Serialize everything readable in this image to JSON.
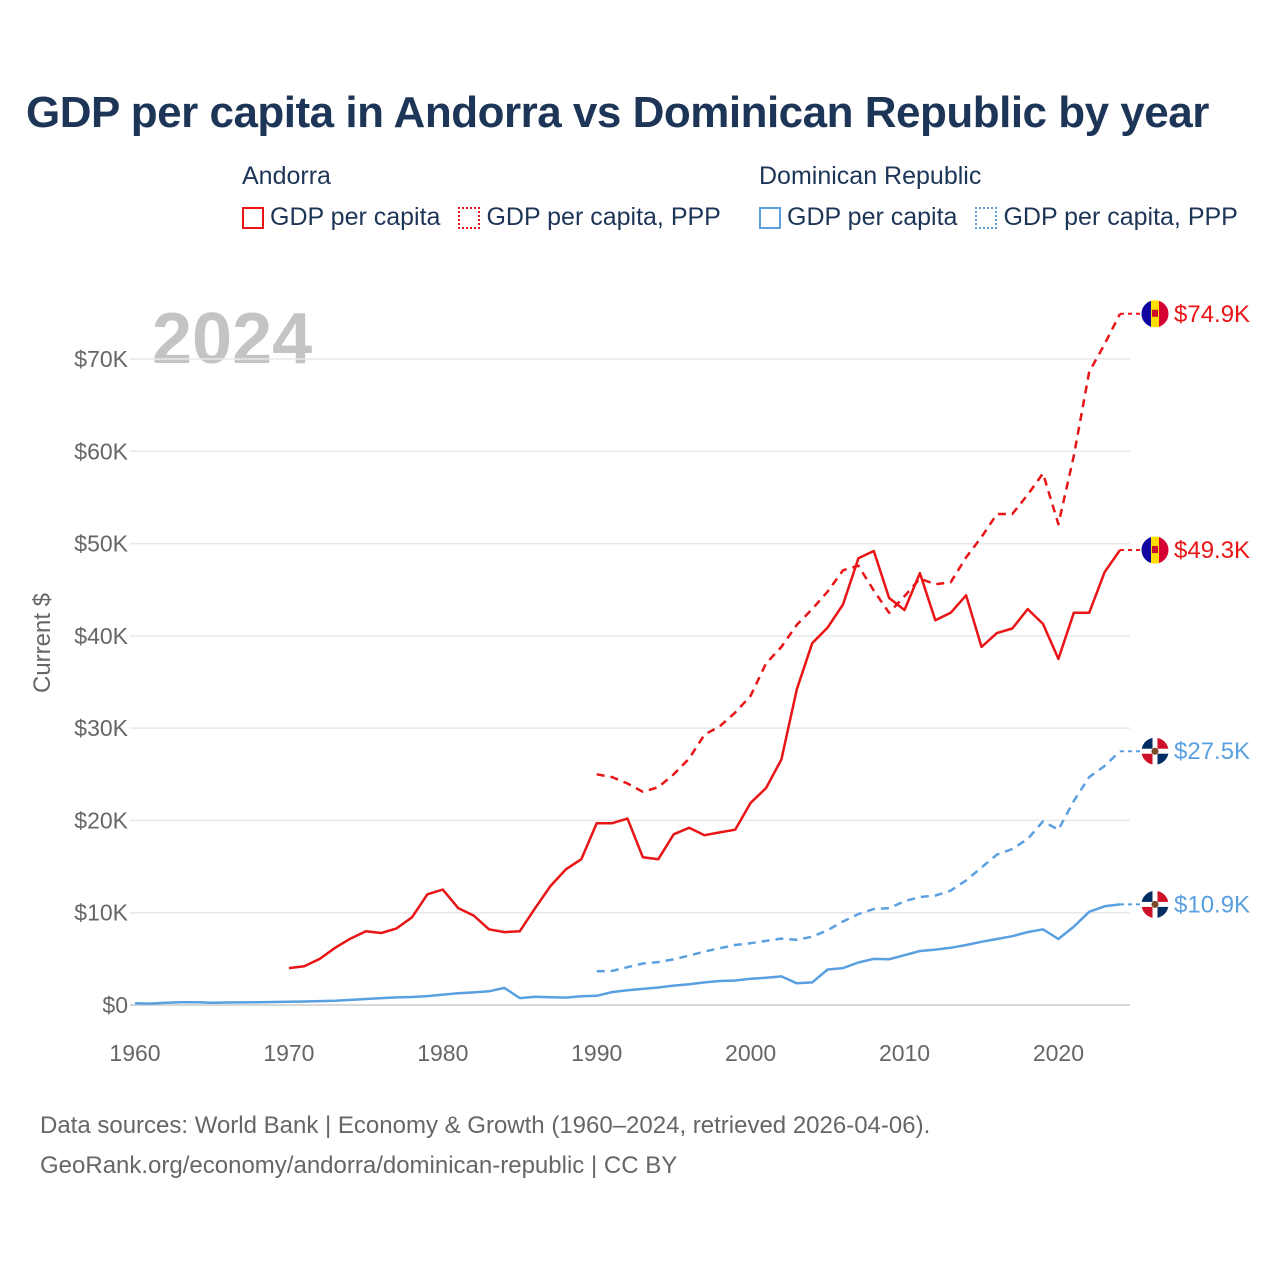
{
  "title": "GDP per capita in Andorra vs Dominican Republic by year",
  "legend": {
    "groups": [
      {
        "name": "Andorra",
        "color": "#e81416",
        "items": [
          {
            "label": "GDP per capita",
            "style": "solid"
          },
          {
            "label": "GDP per capita, PPP",
            "style": "dotted"
          }
        ]
      },
      {
        "name": "Dominican Republic",
        "color": "#5aa0e0",
        "items": [
          {
            "label": "GDP per capita",
            "style": "solid"
          },
          {
            "label": "GDP per capita, PPP",
            "style": "dotted"
          }
        ]
      }
    ]
  },
  "footer": {
    "line1": "Data sources: World Bank | Economy & Growth (1960–2024, retrieved 2026-04-06).",
    "line2": "GeoRank.org/economy/andorra/dominican-republic | CC BY"
  },
  "chart_data": {
    "type": "line",
    "title": "GDP per capita in Andorra vs Dominican Republic by year",
    "year_watermark": "2024",
    "xlabel": "",
    "ylabel": "Current $",
    "xlim": [
      1960,
      2024
    ],
    "ylim": [
      0,
      75000
    ],
    "xticks": [
      1960,
      1970,
      1980,
      1990,
      2000,
      2010,
      2020
    ],
    "yticks": [
      0,
      10000,
      20000,
      30000,
      40000,
      50000,
      60000,
      70000
    ],
    "ytick_labels": [
      "$0",
      "$10K",
      "$20K",
      "$30K",
      "$40K",
      "$50K",
      "$60K",
      "$70K"
    ],
    "grid": true,
    "series": [
      {
        "name": "Andorra GDP per capita",
        "color": "#e81416",
        "dash": "solid",
        "end_label": "$49.3K",
        "flag": "andorra",
        "x": [
          1970,
          1971,
          1972,
          1973,
          1974,
          1975,
          1976,
          1977,
          1978,
          1979,
          1980,
          1981,
          1982,
          1983,
          1984,
          1985,
          1986,
          1987,
          1988,
          1989,
          1990,
          1991,
          1992,
          1993,
          1994,
          1995,
          1996,
          1997,
          1998,
          1999,
          2000,
          2001,
          2002,
          2003,
          2004,
          2005,
          2006,
          2007,
          2008,
          2009,
          2010,
          2011,
          2012,
          2013,
          2014,
          2015,
          2016,
          2017,
          2018,
          2019,
          2020,
          2021,
          2022,
          2023,
          2024
        ],
        "values": [
          4000,
          4200,
          5000,
          6200,
          7200,
          8000,
          7800,
          8300,
          9500,
          12000,
          12500,
          10500,
          9700,
          8200,
          7900,
          8000,
          10500,
          12900,
          14700,
          15800,
          19700,
          19700,
          20200,
          16000,
          15800,
          18500,
          19200,
          18400,
          18700,
          19000,
          21900,
          23500,
          26600,
          34200,
          39200,
          40900,
          43400,
          48400,
          49200,
          44100,
          42800,
          46800,
          41700,
          42500,
          44400,
          38800,
          40300,
          40800,
          42900,
          41300,
          37500,
          42500,
          42500,
          46900,
          49300
        ]
      },
      {
        "name": "Andorra GDP per capita, PPP",
        "color": "#e81416",
        "dash": "dashed",
        "end_label": "$74.9K",
        "flag": "andorra",
        "x": [
          1990,
          1991,
          1992,
          1993,
          1994,
          1995,
          1996,
          1997,
          1998,
          1999,
          2000,
          2001,
          2002,
          2003,
          2004,
          2005,
          2006,
          2007,
          2008,
          2009,
          2010,
          2011,
          2012,
          2013,
          2014,
          2015,
          2016,
          2017,
          2018,
          2019,
          2020,
          2021,
          2022,
          2023,
          2024
        ],
        "values": [
          25000,
          24700,
          24000,
          23100,
          23600,
          25000,
          26700,
          29300,
          30200,
          31700,
          33500,
          37000,
          38800,
          41200,
          42900,
          44800,
          47100,
          47600,
          44900,
          42500,
          44300,
          46200,
          45600,
          45800,
          48500,
          50700,
          53200,
          53200,
          55300,
          57600,
          52100,
          59500,
          68600,
          71600,
          74900
        ]
      },
      {
        "name": "Dominican Republic GDP per capita",
        "color": "#5aa0e0",
        "dash": "solid",
        "end_label": "$10.9K",
        "flag": "dominican-republic",
        "x": [
          1960,
          1961,
          1962,
          1963,
          1964,
          1965,
          1966,
          1967,
          1968,
          1969,
          1970,
          1971,
          1972,
          1973,
          1974,
          1975,
          1976,
          1977,
          1978,
          1979,
          1980,
          1981,
          1982,
          1983,
          1984,
          1985,
          1986,
          1987,
          1988,
          1989,
          1990,
          1991,
          1992,
          1993,
          1994,
          1995,
          1996,
          1997,
          1998,
          1999,
          2000,
          2001,
          2002,
          2003,
          2004,
          2005,
          2006,
          2007,
          2008,
          2009,
          2010,
          2011,
          2012,
          2013,
          2014,
          2015,
          2016,
          2017,
          2018,
          2019,
          2020,
          2021,
          2022,
          2023,
          2024
        ],
        "values": [
          200,
          150,
          250,
          300,
          300,
          250,
          270,
          280,
          300,
          320,
          350,
          380,
          420,
          470,
          550,
          650,
          750,
          820,
          870,
          960,
          1130,
          1270,
          1370,
          1480,
          1850,
          750,
          900,
          850,
          800,
          950,
          1000,
          1400,
          1600,
          1750,
          1900,
          2100,
          2250,
          2450,
          2600,
          2650,
          2850,
          2950,
          3100,
          2350,
          2450,
          3850,
          4000,
          4600,
          5000,
          4950,
          5400,
          5850,
          6000,
          6200,
          6500,
          6850,
          7150,
          7450,
          7900,
          8200,
          7150,
          8500,
          10100,
          10700,
          10900
        ]
      },
      {
        "name": "Dominican Republic GDP per capita, PPP",
        "color": "#5aa0e0",
        "dash": "dashed",
        "end_label": "$27.5K",
        "flag": "dominican-republic",
        "x": [
          1990,
          1991,
          1992,
          1993,
          1994,
          1995,
          1996,
          1997,
          1998,
          1999,
          2000,
          2001,
          2002,
          2003,
          2004,
          2005,
          2006,
          2007,
          2008,
          2009,
          2010,
          2011,
          2012,
          2013,
          2014,
          2015,
          2016,
          2017,
          2018,
          2019,
          2020,
          2021,
          2022,
          2023,
          2024
        ],
        "values": [
          3650,
          3700,
          4100,
          4500,
          4650,
          4950,
          5350,
          5800,
          6150,
          6500,
          6700,
          6950,
          7200,
          7050,
          7400,
          8100,
          9050,
          9850,
          10400,
          10500,
          11250,
          11700,
          11850,
          12400,
          13500,
          14900,
          16300,
          16900,
          18000,
          19900,
          19000,
          22100,
          24700,
          25900,
          27500
        ]
      }
    ]
  }
}
